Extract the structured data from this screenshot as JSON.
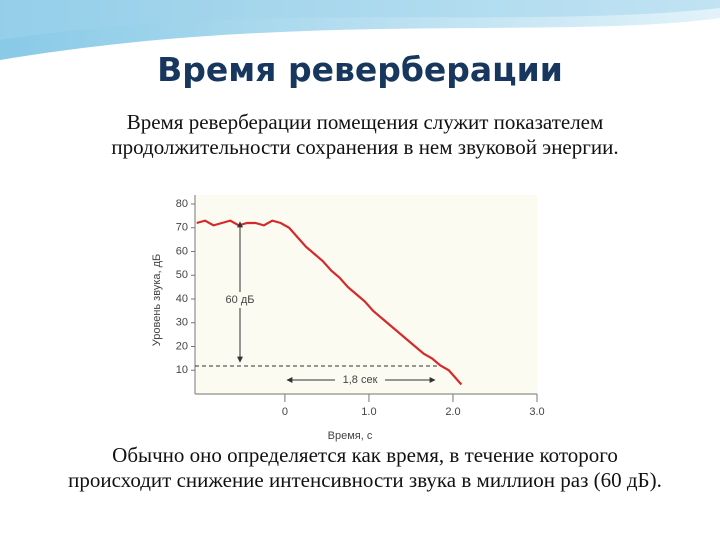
{
  "title": "Время реверберации",
  "paragraphs": [
    "Время реверберации помещения служит показателем продолжительности сохранения в нем звуковой энергии.",
    "Обычно оно определяется как время, в течение которого происходит снижение интенсивности звука в миллион раз (60 дБ)."
  ],
  "chart_data": {
    "type": "line",
    "x_label": "Время, с",
    "y_label": "Уровень звука, дБ",
    "x": [
      -1.05,
      -0.95,
      -0.85,
      -0.75,
      -0.65,
      -0.55,
      -0.45,
      -0.35,
      -0.25,
      -0.15,
      -0.05,
      0.05,
      0.15,
      0.25,
      0.35,
      0.45,
      0.55,
      0.65,
      0.75,
      0.85,
      0.95,
      1.05,
      1.15,
      1.25,
      1.35,
      1.45,
      1.55,
      1.65,
      1.75,
      1.85,
      1.95,
      2.05,
      2.1
    ],
    "series": [
      {
        "color": "#d42a2a",
        "values": [
          72,
          73,
          71,
          72,
          73,
          71,
          72,
          72,
          71,
          73,
          72,
          70,
          66,
          62,
          59,
          56,
          52,
          49,
          45,
          42,
          39,
          35,
          32,
          29,
          26,
          23,
          20,
          17,
          15,
          12,
          10,
          6,
          4
        ]
      }
    ],
    "xlim": [
      -1.07,
      3.0
    ],
    "ylim": [
      0,
      80
    ],
    "xticks": [
      0,
      {
        "value": 1,
        "label": "1.0"
      },
      {
        "value": 2,
        "label": "2.0"
      },
      {
        "value": 3,
        "label": "3.0"
      }
    ],
    "yticks": [
      10,
      20,
      30,
      40,
      50,
      60,
      70,
      80
    ],
    "annotations": [
      "60 дБ",
      "1,8 сек"
    ]
  }
}
